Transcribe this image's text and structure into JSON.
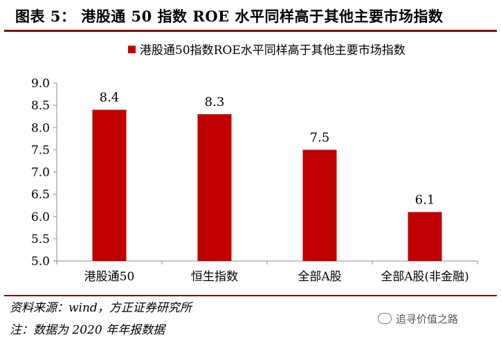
{
  "figure": {
    "title": "图表 5： 港股通 50 指数 ROE 水平同样高于其他主要市场指数",
    "source": "资料来源：wind，方正证券研究所",
    "note": "注：数据为 2020 年年报数据",
    "watermark": "追寻价值之路"
  },
  "chart_data": {
    "type": "bar",
    "title": "",
    "categories": [
      "港股通50",
      "恒生指数",
      "全部A股",
      "全部A股(非金融)"
    ],
    "series": [
      {
        "name": "港股通50指数ROE水平同样高于其他主要市场指数",
        "values": [
          8.4,
          8.3,
          7.5,
          6.1
        ],
        "color": "#c00000"
      }
    ],
    "data_labels": [
      "8.4",
      "8.3",
      "7.5",
      "6.1"
    ],
    "ylim": [
      5.0,
      9.0
    ],
    "yticks": [
      "5.0",
      "5.5",
      "6.0",
      "6.5",
      "7.0",
      "7.5",
      "8.0",
      "8.5",
      "9.0"
    ],
    "grid": false,
    "legend": "top-center",
    "xlabel": "",
    "ylabel": ""
  }
}
